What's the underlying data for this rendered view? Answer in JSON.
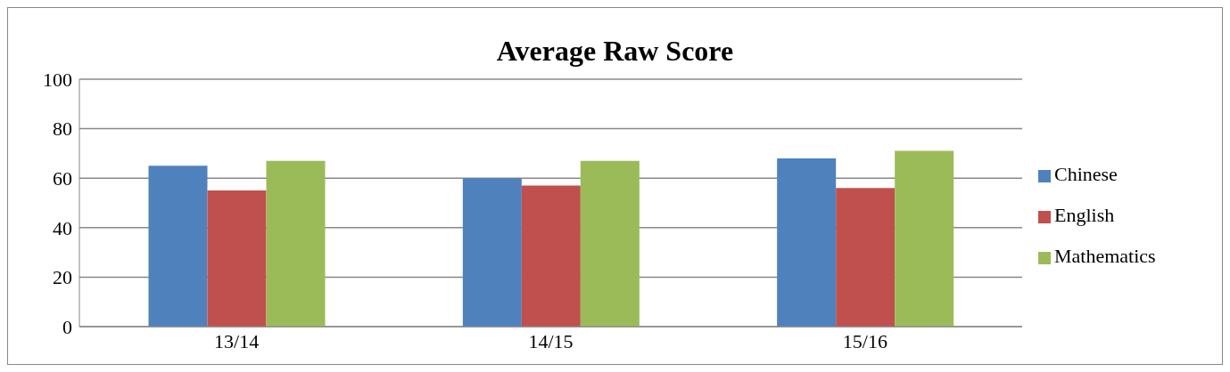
{
  "chart_data": {
    "type": "bar",
    "title": "Average Raw Score",
    "categories": [
      "13/14",
      "14/15",
      "15/16"
    ],
    "series": [
      {
        "name": "Chinese",
        "color": "#4f81bd",
        "values": [
          65,
          60,
          68
        ]
      },
      {
        "name": "English",
        "color": "#c0504d",
        "values": [
          55,
          57,
          56
        ]
      },
      {
        "name": "Mathematics",
        "color": "#9bbb59",
        "values": [
          67,
          67,
          71
        ]
      }
    ],
    "ylim": [
      0,
      100
    ],
    "yticks": [
      0,
      20,
      40,
      60,
      80,
      100
    ],
    "grid": "y",
    "legend": "right"
  }
}
